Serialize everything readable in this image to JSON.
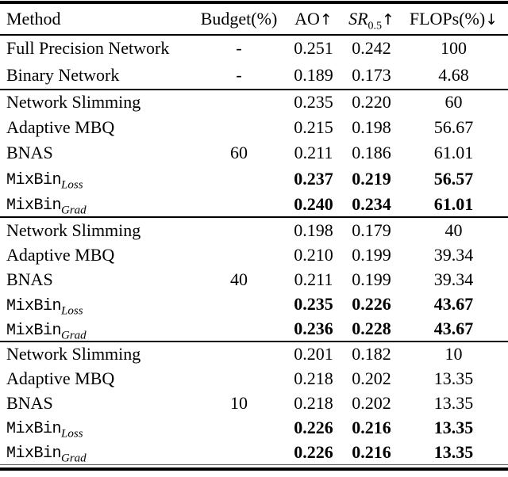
{
  "colors": {
    "text": "#000000",
    "background": "#ffffff",
    "rule": "#000000"
  },
  "table": {
    "headers": {
      "method": "Method",
      "budget": "Budget(%)",
      "ao": {
        "main": "AO",
        "arrow": "↑"
      },
      "sr": {
        "main": "SR",
        "sub": "0.5",
        "arrow": "↑"
      },
      "flops": {
        "main": "FLOPs(%)",
        "arrow": "↓"
      }
    },
    "sections": [
      {
        "rows": [
          {
            "method": "Full Precision Network",
            "sub": "",
            "mono": false,
            "bold": false,
            "budget": "-",
            "ao": "0.251",
            "sr": "0.242",
            "flops": "100"
          },
          {
            "method": "Binary Network",
            "sub": "",
            "mono": false,
            "bold": false,
            "budget": "-",
            "ao": "0.189",
            "sr": "0.173",
            "flops": "4.68"
          }
        ]
      },
      {
        "rows": [
          {
            "method": "Network Slimming",
            "sub": "",
            "mono": false,
            "bold": false,
            "budget": "",
            "ao": "0.235",
            "sr": "0.220",
            "flops": "60"
          },
          {
            "method": "Adaptive MBQ",
            "sub": "",
            "mono": false,
            "bold": false,
            "budget": "",
            "ao": "0.215",
            "sr": "0.198",
            "flops": "56.67"
          },
          {
            "method": "BNAS",
            "sub": "",
            "mono": false,
            "bold": false,
            "budget": "60",
            "ao": "0.211",
            "sr": "0.186",
            "flops": "61.01"
          },
          {
            "method": "MixBin",
            "sub": "Loss",
            "mono": true,
            "bold": true,
            "budget": "",
            "ao": "0.237",
            "sr": "0.219",
            "flops": "56.57"
          },
          {
            "method": "MixBin",
            "sub": "Grad",
            "mono": true,
            "bold": true,
            "budget": "",
            "ao": "0.240",
            "sr": "0.234",
            "flops": "61.01"
          }
        ]
      },
      {
        "rows": [
          {
            "method": "Network Slimming",
            "sub": "",
            "mono": false,
            "bold": false,
            "budget": "",
            "ao": "0.198",
            "sr": "0.179",
            "flops": "40"
          },
          {
            "method": "Adaptive MBQ",
            "sub": "",
            "mono": false,
            "bold": false,
            "budget": "",
            "ao": "0.210",
            "sr": "0.199",
            "flops": "39.34"
          },
          {
            "method": "BNAS",
            "sub": "",
            "mono": false,
            "bold": false,
            "budget": "40",
            "ao": "0.211",
            "sr": "0.199",
            "flops": "39.34"
          },
          {
            "method": "MixBin",
            "sub": "Loss",
            "mono": true,
            "bold": true,
            "budget": "",
            "ao": "0.235",
            "sr": "0.226",
            "flops": "43.67"
          },
          {
            "method": "MixBin",
            "sub": "Grad",
            "mono": true,
            "bold": true,
            "budget": "",
            "ao": "0.236",
            "sr": "0.228",
            "flops": "43.67"
          }
        ]
      },
      {
        "rows": [
          {
            "method": "Network Slimming",
            "sub": "",
            "mono": false,
            "bold": false,
            "budget": "",
            "ao": "0.201",
            "sr": "0.182",
            "flops": "10"
          },
          {
            "method": "Adaptive MBQ",
            "sub": "",
            "mono": false,
            "bold": false,
            "budget": "",
            "ao": "0.218",
            "sr": "0.202",
            "flops": "13.35"
          },
          {
            "method": "BNAS",
            "sub": "",
            "mono": false,
            "bold": false,
            "budget": "10",
            "ao": "0.218",
            "sr": "0.202",
            "flops": "13.35"
          },
          {
            "method": "MixBin",
            "sub": "Loss",
            "mono": true,
            "bold": true,
            "budget": "",
            "ao": "0.226",
            "sr": "0.216",
            "flops": "13.35"
          },
          {
            "method": "MixBin",
            "sub": "Grad",
            "mono": true,
            "bold": true,
            "budget": "",
            "ao": "0.226",
            "sr": "0.216",
            "flops": "13.35"
          }
        ]
      }
    ]
  }
}
